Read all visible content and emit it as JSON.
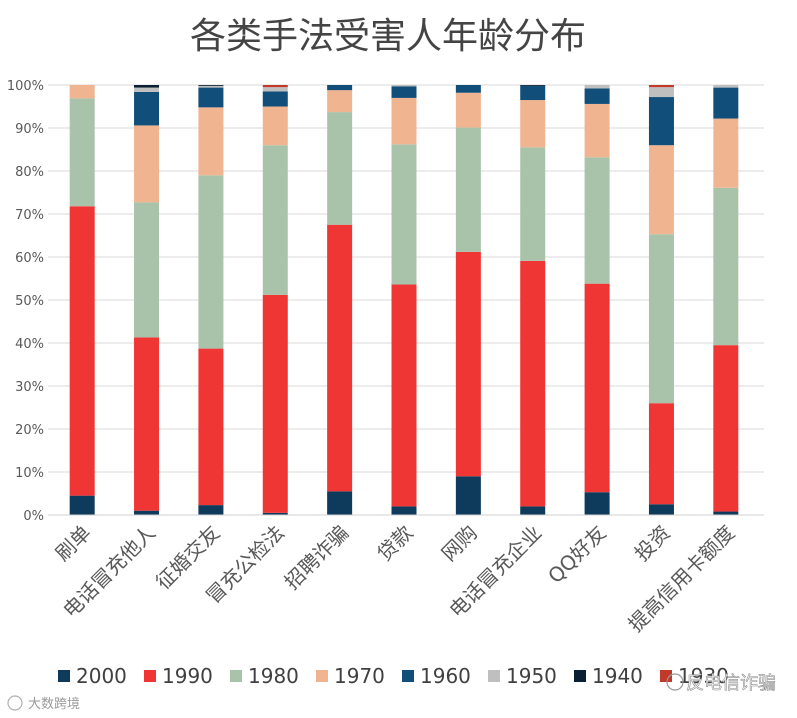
{
  "chart_data": {
    "type": "bar",
    "stacked": true,
    "normalized": true,
    "title": "各类手法受害人年龄分布",
    "xlabel": "",
    "ylabel": "",
    "ylim": [
      0,
      100
    ],
    "y_ticks": [
      "0%",
      "10%",
      "20%",
      "30%",
      "40%",
      "50%",
      "60%",
      "70%",
      "80%",
      "90%",
      "100%"
    ],
    "grid": true,
    "legend_position": "bottom",
    "categories": [
      "刷单",
      "电话冒充他人",
      "征婚交友",
      "冒充公检法",
      "招聘诈骗",
      "贷款",
      "网购",
      "电话冒充企业",
      "QQ好友",
      "投资",
      "提高信用卡额度"
    ],
    "series": [
      {
        "name": "2000",
        "color": "#0e3a5c",
        "values": [
          4.5,
          1.0,
          2.3,
          0.5,
          5.5,
          2.0,
          9.0,
          2.0,
          5.3,
          2.5,
          0.8
        ]
      },
      {
        "name": "1990",
        "color": "#f03535",
        "values": [
          67.3,
          40.3,
          36.4,
          50.7,
          62.0,
          51.6,
          52.2,
          57.1,
          48.5,
          23.5,
          38.7
        ]
      },
      {
        "name": "1980",
        "color": "#a9c3ab",
        "values": [
          25.1,
          31.4,
          40.3,
          34.8,
          26.2,
          32.6,
          28.9,
          26.4,
          29.4,
          39.3,
          36.6
        ]
      },
      {
        "name": "1970",
        "color": "#f0b490",
        "values": [
          3.1,
          17.9,
          15.8,
          9.0,
          5.1,
          10.8,
          8.1,
          11.0,
          12.4,
          20.7,
          16.1
        ]
      },
      {
        "name": "1960",
        "color": "#114e7a",
        "values": [
          0.0,
          7.8,
          4.6,
          3.5,
          1.2,
          2.7,
          1.8,
          3.3,
          3.6,
          11.2,
          7.2
        ]
      },
      {
        "name": "1950",
        "color": "#bfbfbf",
        "values": [
          0.0,
          1.0,
          0.4,
          1.0,
          0.0,
          0.3,
          0.0,
          0.0,
          0.8,
          2.3,
          0.6
        ]
      },
      {
        "name": "1940",
        "color": "#0a1f33",
        "values": [
          0.0,
          0.6,
          0.2,
          0.0,
          0.0,
          0.0,
          0.0,
          0.2,
          0.0,
          0.0,
          0.0
        ]
      },
      {
        "name": "1930",
        "color": "#c0392b",
        "values": [
          0.0,
          0.0,
          0.0,
          0.5,
          0.0,
          0.0,
          0.0,
          0.0,
          0.0,
          0.5,
          0.0
        ]
      }
    ],
    "legend_labels": [
      "2000",
      "1990",
      "1980",
      "1970",
      "1960",
      "1950",
      "1940",
      "1930"
    ]
  },
  "watermark": {
    "left": "大数跨境",
    "right": "反电信诈骗"
  }
}
